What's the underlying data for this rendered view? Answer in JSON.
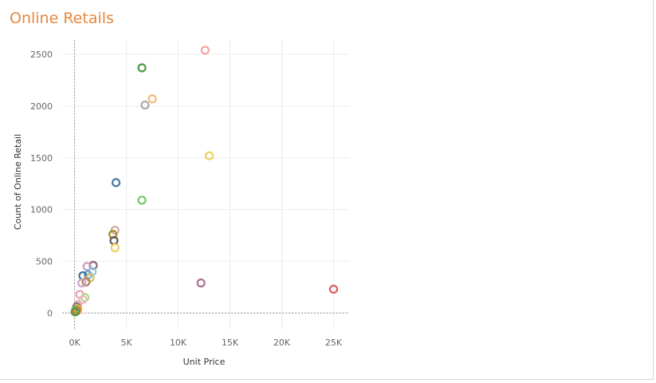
{
  "header": {
    "title": "Online Retails"
  },
  "chart_data": {
    "type": "scatter",
    "title": "Online Retails",
    "xlabel": "Unit Price",
    "ylabel": "Count of Online Retail",
    "xlim": [
      -1200,
      26500
    ],
    "ylim": [
      -160,
      2640
    ],
    "x_ticks": [
      0,
      5000,
      10000,
      15000,
      20000,
      25000
    ],
    "x_tick_labels": [
      "0K",
      "5K",
      "10K",
      "15K",
      "20K",
      "25K"
    ],
    "y_ticks": [
      0,
      500,
      1000,
      1500,
      2000,
      2500
    ],
    "y_tick_labels": [
      "0",
      "500",
      "1000",
      "1500",
      "2000",
      "2500"
    ],
    "grid": true,
    "zero_lines_dotted": true,
    "marker": "hollow-circle",
    "points": [
      {
        "x": 12600,
        "y": 2540,
        "color": "#f4a3a3"
      },
      {
        "x": 6500,
        "y": 2370,
        "color": "#4e9a4b"
      },
      {
        "x": 7500,
        "y": 2070,
        "color": "#f6bb7a"
      },
      {
        "x": 6800,
        "y": 2010,
        "color": "#a8a8a8"
      },
      {
        "x": 13000,
        "y": 1520,
        "color": "#ecd25a"
      },
      {
        "x": 4000,
        "y": 1260,
        "color": "#4a79a8"
      },
      {
        "x": 6500,
        "y": 1090,
        "color": "#76c56b"
      },
      {
        "x": 3900,
        "y": 800,
        "color": "#d9a7a0"
      },
      {
        "x": 3700,
        "y": 760,
        "color": "#a08a2c"
      },
      {
        "x": 3800,
        "y": 700,
        "color": "#5a5a5a"
      },
      {
        "x": 3900,
        "y": 630,
        "color": "#f0d15e"
      },
      {
        "x": 12200,
        "y": 290,
        "color": "#a86e8e"
      },
      {
        "x": 25000,
        "y": 230,
        "color": "#dc5a5a"
      },
      {
        "x": 1800,
        "y": 460,
        "color": "#8a6a73"
      },
      {
        "x": 1200,
        "y": 450,
        "color": "#c99ac3"
      },
      {
        "x": 1700,
        "y": 400,
        "color": "#8ec3e8"
      },
      {
        "x": 1300,
        "y": 370,
        "color": "#7aa7d3"
      },
      {
        "x": 800,
        "y": 360,
        "color": "#3e6e8a"
      },
      {
        "x": 1500,
        "y": 340,
        "color": "#d1c066"
      },
      {
        "x": 1100,
        "y": 300,
        "color": "#b87f56"
      },
      {
        "x": 700,
        "y": 290,
        "color": "#c6a2c8"
      },
      {
        "x": 500,
        "y": 180,
        "color": "#ef9fb0"
      },
      {
        "x": 1000,
        "y": 150,
        "color": "#a7d78f"
      },
      {
        "x": 800,
        "y": 130,
        "color": "#f2b7c1"
      },
      {
        "x": 300,
        "y": 80,
        "color": "#f2a6b2"
      },
      {
        "x": 200,
        "y": 60,
        "color": "#7d7d7d"
      },
      {
        "x": 300,
        "y": 40,
        "color": "#e9a43a"
      },
      {
        "x": 100,
        "y": 30,
        "color": "#76b34c"
      },
      {
        "x": 200,
        "y": 20,
        "color": "#d07a2f"
      },
      {
        "x": 50,
        "y": 10,
        "color": "#4e9a4b"
      }
    ]
  }
}
